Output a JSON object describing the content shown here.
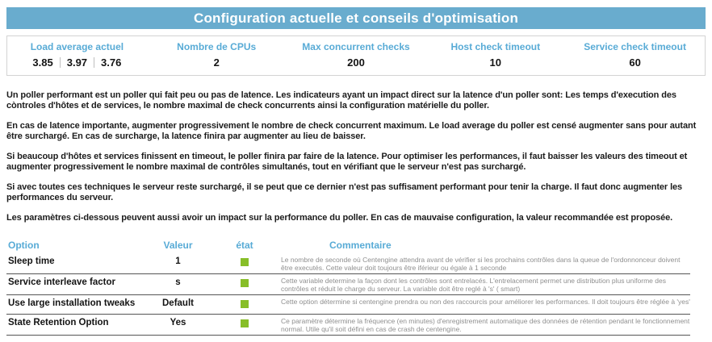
{
  "title": "Configuration actuelle et conseils d'optimisation",
  "colors": {
    "title_bar_bg": "#69ACCE",
    "header_text_blue": "#58ABD6",
    "status_ok_green": "#87BE28",
    "comment_gray": "#8f8f8f"
  },
  "summary": {
    "load_label": "Load average actuel",
    "load_values": [
      "3.85",
      "3.97",
      "3.76"
    ],
    "columns": [
      {
        "label": "Nombre de CPUs",
        "value": "2"
      },
      {
        "label": "Max concurrent checks",
        "value": "200"
      },
      {
        "label": "Host check timeout",
        "value": "10"
      },
      {
        "label": "Service check timeout",
        "value": "60"
      }
    ]
  },
  "paragraphs": [
    "Un poller performant est un poller qui fait peu ou pas de latence. Les indicateurs ayant un impact direct sur la latence d'un poller sont: Les temps d'execution des còntroles d'hôtes et de services, le nombre maximal de check concurrents ainsi la configuration matérielle du poller.",
    "En cas de latence importante, augmenter progressivement le nombre de check concurrent maximum. Le load average du poller est censé augmenter sans pour autant être surchargé. En cas de surcharge, la latence finira par augmenter au lieu de baisser.",
    "Si beaucoup d'hôtes et services finissent en timeout, le poller finira par faire de la latence. Pour optimiser les performances, il faut baisser les valeurs des timeout et augmenter progressivement le nombre maximal de contrôles simultanés, tout en vérifiant que le serveur n'est pas surchargé.",
    "Si avec toutes ces techniques le serveur reste surchargé, il se peut que ce dernier n'est pas suffisament performant pour tenir la charge. Il faut donc augmenter les performances du serveur.",
    "Les paramètres ci-dessous peuvent aussi avoir un impact sur la performance du poller. En cas de mauvaise configuration, la valeur recommandée est proposée."
  ],
  "options_table": {
    "headers": {
      "option": "Option",
      "valeur": "Valeur",
      "etat": "état",
      "commentaire": "Commentaire"
    },
    "rows": [
      {
        "option": "Sleep time",
        "valeur": "1",
        "etat": "ok",
        "commentaire": "Le nombre de seconde où Centengine attendra avant de vérifier si les prochains contrôles dans la queue de l'ordonnonceur doivent être executés. Cette valeur doit toujours être iférieur ou égale à 1 seconde"
      },
      {
        "option": "Service interleave factor",
        "valeur": "s",
        "etat": "ok",
        "commentaire": "Cette variable determine la façon dont les contrôles sont entrelacés. L'entrelacement permet une distribution plus uniforme des contrôles et réduit le charge du serveur. La variable doit être reglé à 's' ( smart)"
      },
      {
        "option": "Use large installation tweaks",
        "valeur": "Default",
        "etat": "ok",
        "commentaire": "Cette option détermine si centengine prendra ou non des raccourcis pour améliorer les performances. Il doit toujours être réglée à 'yes'"
      },
      {
        "option": "State Retention Option",
        "valeur": "Yes",
        "etat": "ok",
        "commentaire": "Ce paramètre détermine la fréquence (en minutes) d'enregistrement automatique des données de rétention pendant le fonctionnement normal. Utile qu'il soit défini en cas de crash de centengine."
      }
    ]
  }
}
